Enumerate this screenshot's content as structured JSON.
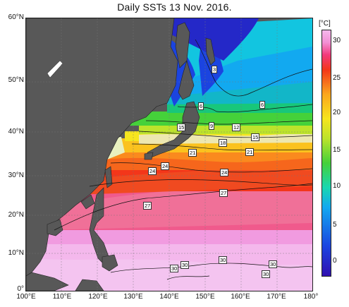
{
  "title": "Daily SSTs 13 Nov. 2016.",
  "colorbar": {
    "unit": "[°C]",
    "ticks": [
      "30",
      "25",
      "20",
      "15",
      "10",
      "5",
      "0"
    ],
    "colors": [
      "#3010b0",
      "#1b44e0",
      "#12a9f0",
      "#18d7b0",
      "#45d13a",
      "#bde32b",
      "#f6e51e",
      "#fba61e",
      "#f3361a",
      "#f23a7c",
      "#f28fd4",
      "#f4b8ec"
    ]
  },
  "axes": {
    "lat_labels": [
      "60°N",
      "50°N",
      "40°N",
      "30°N",
      "20°N",
      "10°N",
      "0°"
    ],
    "lon_labels": [
      "100°E",
      "110°E",
      "120°E",
      "130°E",
      "140°E",
      "150°E",
      "160°E",
      "170°E",
      "180°"
    ]
  },
  "contour_labels": [
    "3",
    "6",
    "6",
    "9",
    "12",
    "15",
    "15",
    "18",
    "21",
    "21",
    "24",
    "24",
    "24",
    "27",
    "27",
    "30",
    "30",
    "30",
    "30",
    "30"
  ],
  "land_color": "#585858"
}
